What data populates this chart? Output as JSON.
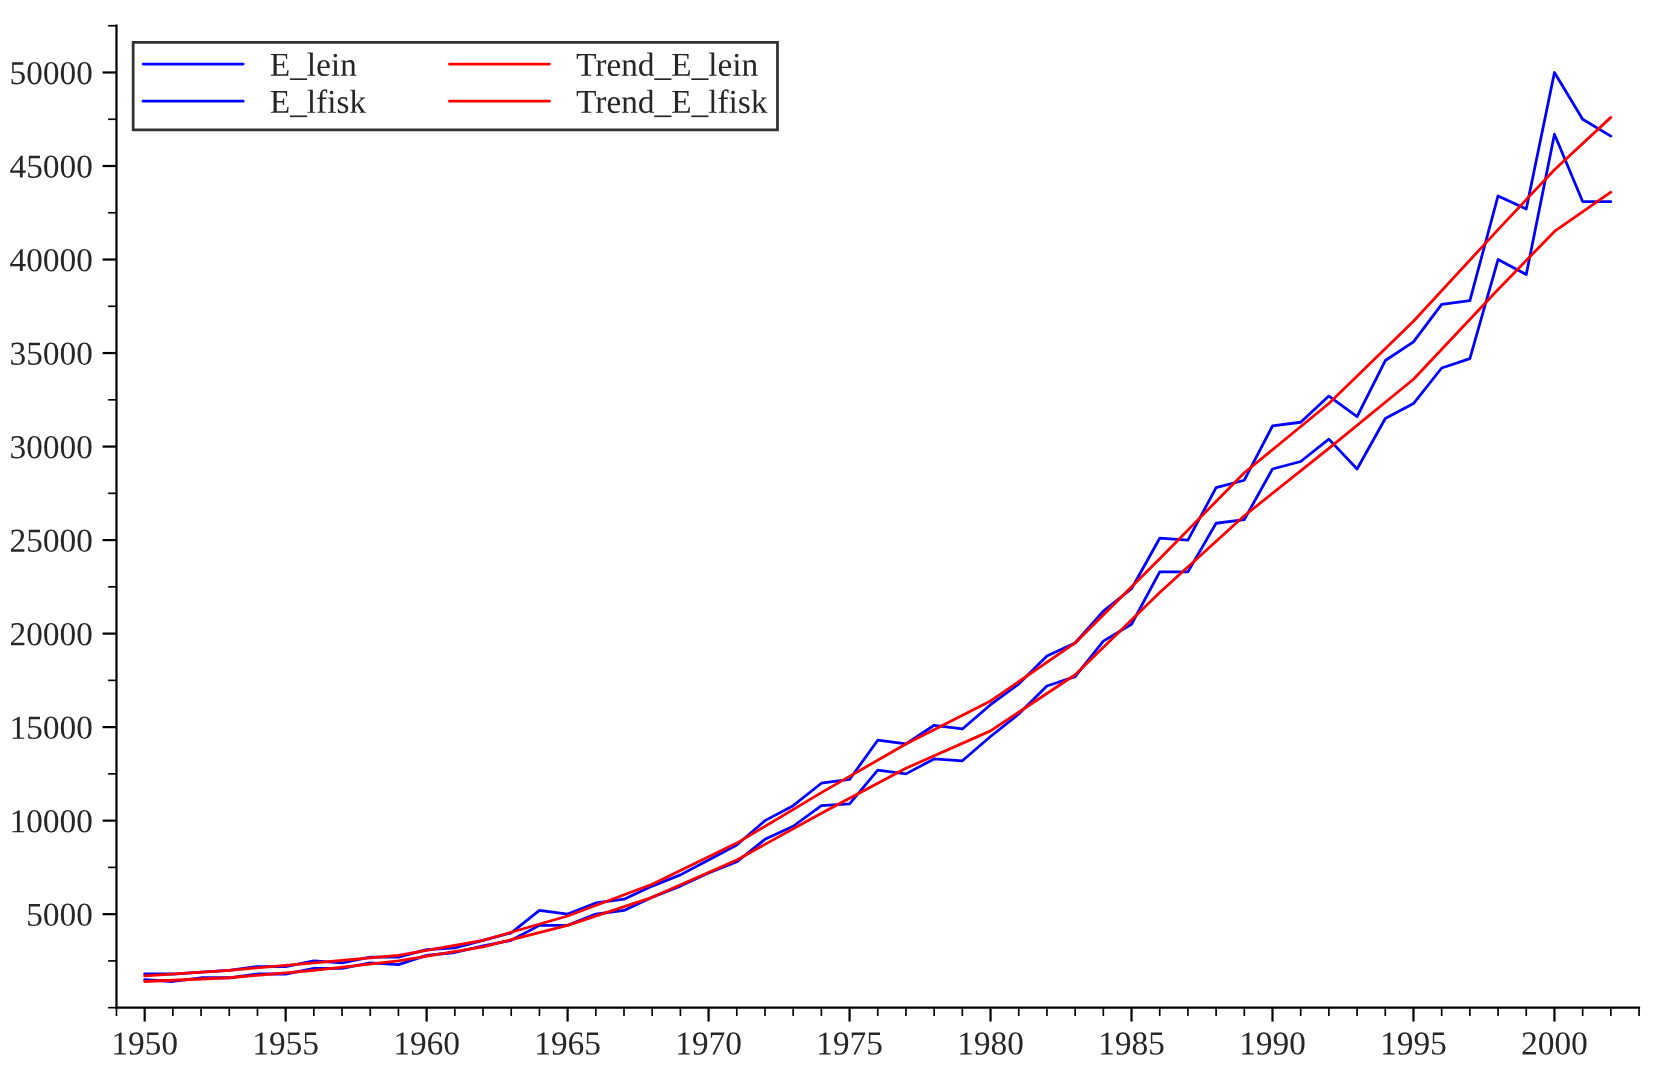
{
  "chart_data": {
    "type": "line",
    "x": [
      1950,
      1951,
      1952,
      1953,
      1954,
      1955,
      1956,
      1957,
      1958,
      1959,
      1960,
      1961,
      1962,
      1963,
      1964,
      1965,
      1966,
      1967,
      1968,
      1969,
      1970,
      1971,
      1972,
      1973,
      1974,
      1975,
      1976,
      1977,
      1978,
      1979,
      1980,
      1981,
      1982,
      1983,
      1984,
      1985,
      1986,
      1987,
      1988,
      1989,
      1990,
      1991,
      1992,
      1993,
      1994,
      1995,
      1996,
      1997,
      1998,
      1999,
      2000,
      2001,
      2002
    ],
    "series": [
      {
        "name": "E_lein",
        "color": "#0000ff",
        "values": [
          1800,
          1800,
          1900,
          2000,
          2200,
          2200,
          2500,
          2400,
          2700,
          2700,
          3100,
          3200,
          3600,
          4000,
          5200,
          5000,
          5600,
          5800,
          6500,
          7100,
          7900,
          8700,
          10000,
          10800,
          12000,
          12200,
          14300,
          14100,
          15100,
          14900,
          16200,
          17300,
          18800,
          19500,
          21200,
          22400,
          25100,
          25000,
          27800,
          28200,
          31100,
          31300,
          32700,
          31600,
          34600,
          35600,
          37600,
          37800,
          43400,
          42700,
          50000,
          47500,
          46600
        ]
      },
      {
        "name": "E_lfisk",
        "color": "#0000ff",
        "values": [
          1500,
          1400,
          1600,
          1600,
          1800,
          1800,
          2100,
          2100,
          2400,
          2300,
          2800,
          2950,
          3300,
          3600,
          4400,
          4400,
          5000,
          5200,
          5900,
          6500,
          7200,
          7800,
          9000,
          9700,
          10800,
          10900,
          12700,
          12500,
          13300,
          13200,
          14500,
          15700,
          17200,
          17700,
          19600,
          20500,
          23300,
          23300,
          25900,
          26100,
          28800,
          29200,
          30400,
          28800,
          31500,
          32300,
          34200,
          34700,
          40000,
          39200,
          46700,
          43100,
          43100
        ]
      },
      {
        "name": "Trend_E_lein",
        "color": "#ff0000",
        "x": [
          1950,
          1953,
          1956,
          1959,
          1962,
          1965,
          1968,
          1971,
          1974,
          1977,
          1980,
          1983,
          1986,
          1989,
          1992,
          1995,
          1998,
          2000,
          2002
        ],
        "values": [
          1700,
          2000,
          2400,
          2800,
          3600,
          4900,
          6600,
          8800,
          11500,
          14100,
          16400,
          19500,
          24000,
          28600,
          32300,
          36700,
          41600,
          44800,
          47600
        ]
      },
      {
        "name": "Trend_E_lfisk",
        "color": "#ff0000",
        "x": [
          1950,
          1953,
          1956,
          1959,
          1962,
          1965,
          1968,
          1971,
          1974,
          1977,
          1980,
          1983,
          1986,
          1989,
          1992,
          1995,
          1998,
          2000,
          2002
        ],
        "values": [
          1400,
          1600,
          2000,
          2500,
          3250,
          4400,
          5900,
          7900,
          10400,
          12800,
          14800,
          17800,
          22200,
          26300,
          29900,
          33600,
          38400,
          41500,
          43600
        ]
      }
    ],
    "xlim": [
      1949,
      2003
    ],
    "ylim": [
      0,
      52500
    ],
    "xticks": [
      1950,
      1955,
      1960,
      1965,
      1970,
      1975,
      1980,
      1985,
      1990,
      1995,
      2000
    ],
    "yticks": [
      5000,
      10000,
      15000,
      20000,
      25000,
      30000,
      35000,
      40000,
      45000,
      50000
    ],
    "grid": false,
    "legend": "top left",
    "line_style": "solid",
    "marker": "none"
  }
}
